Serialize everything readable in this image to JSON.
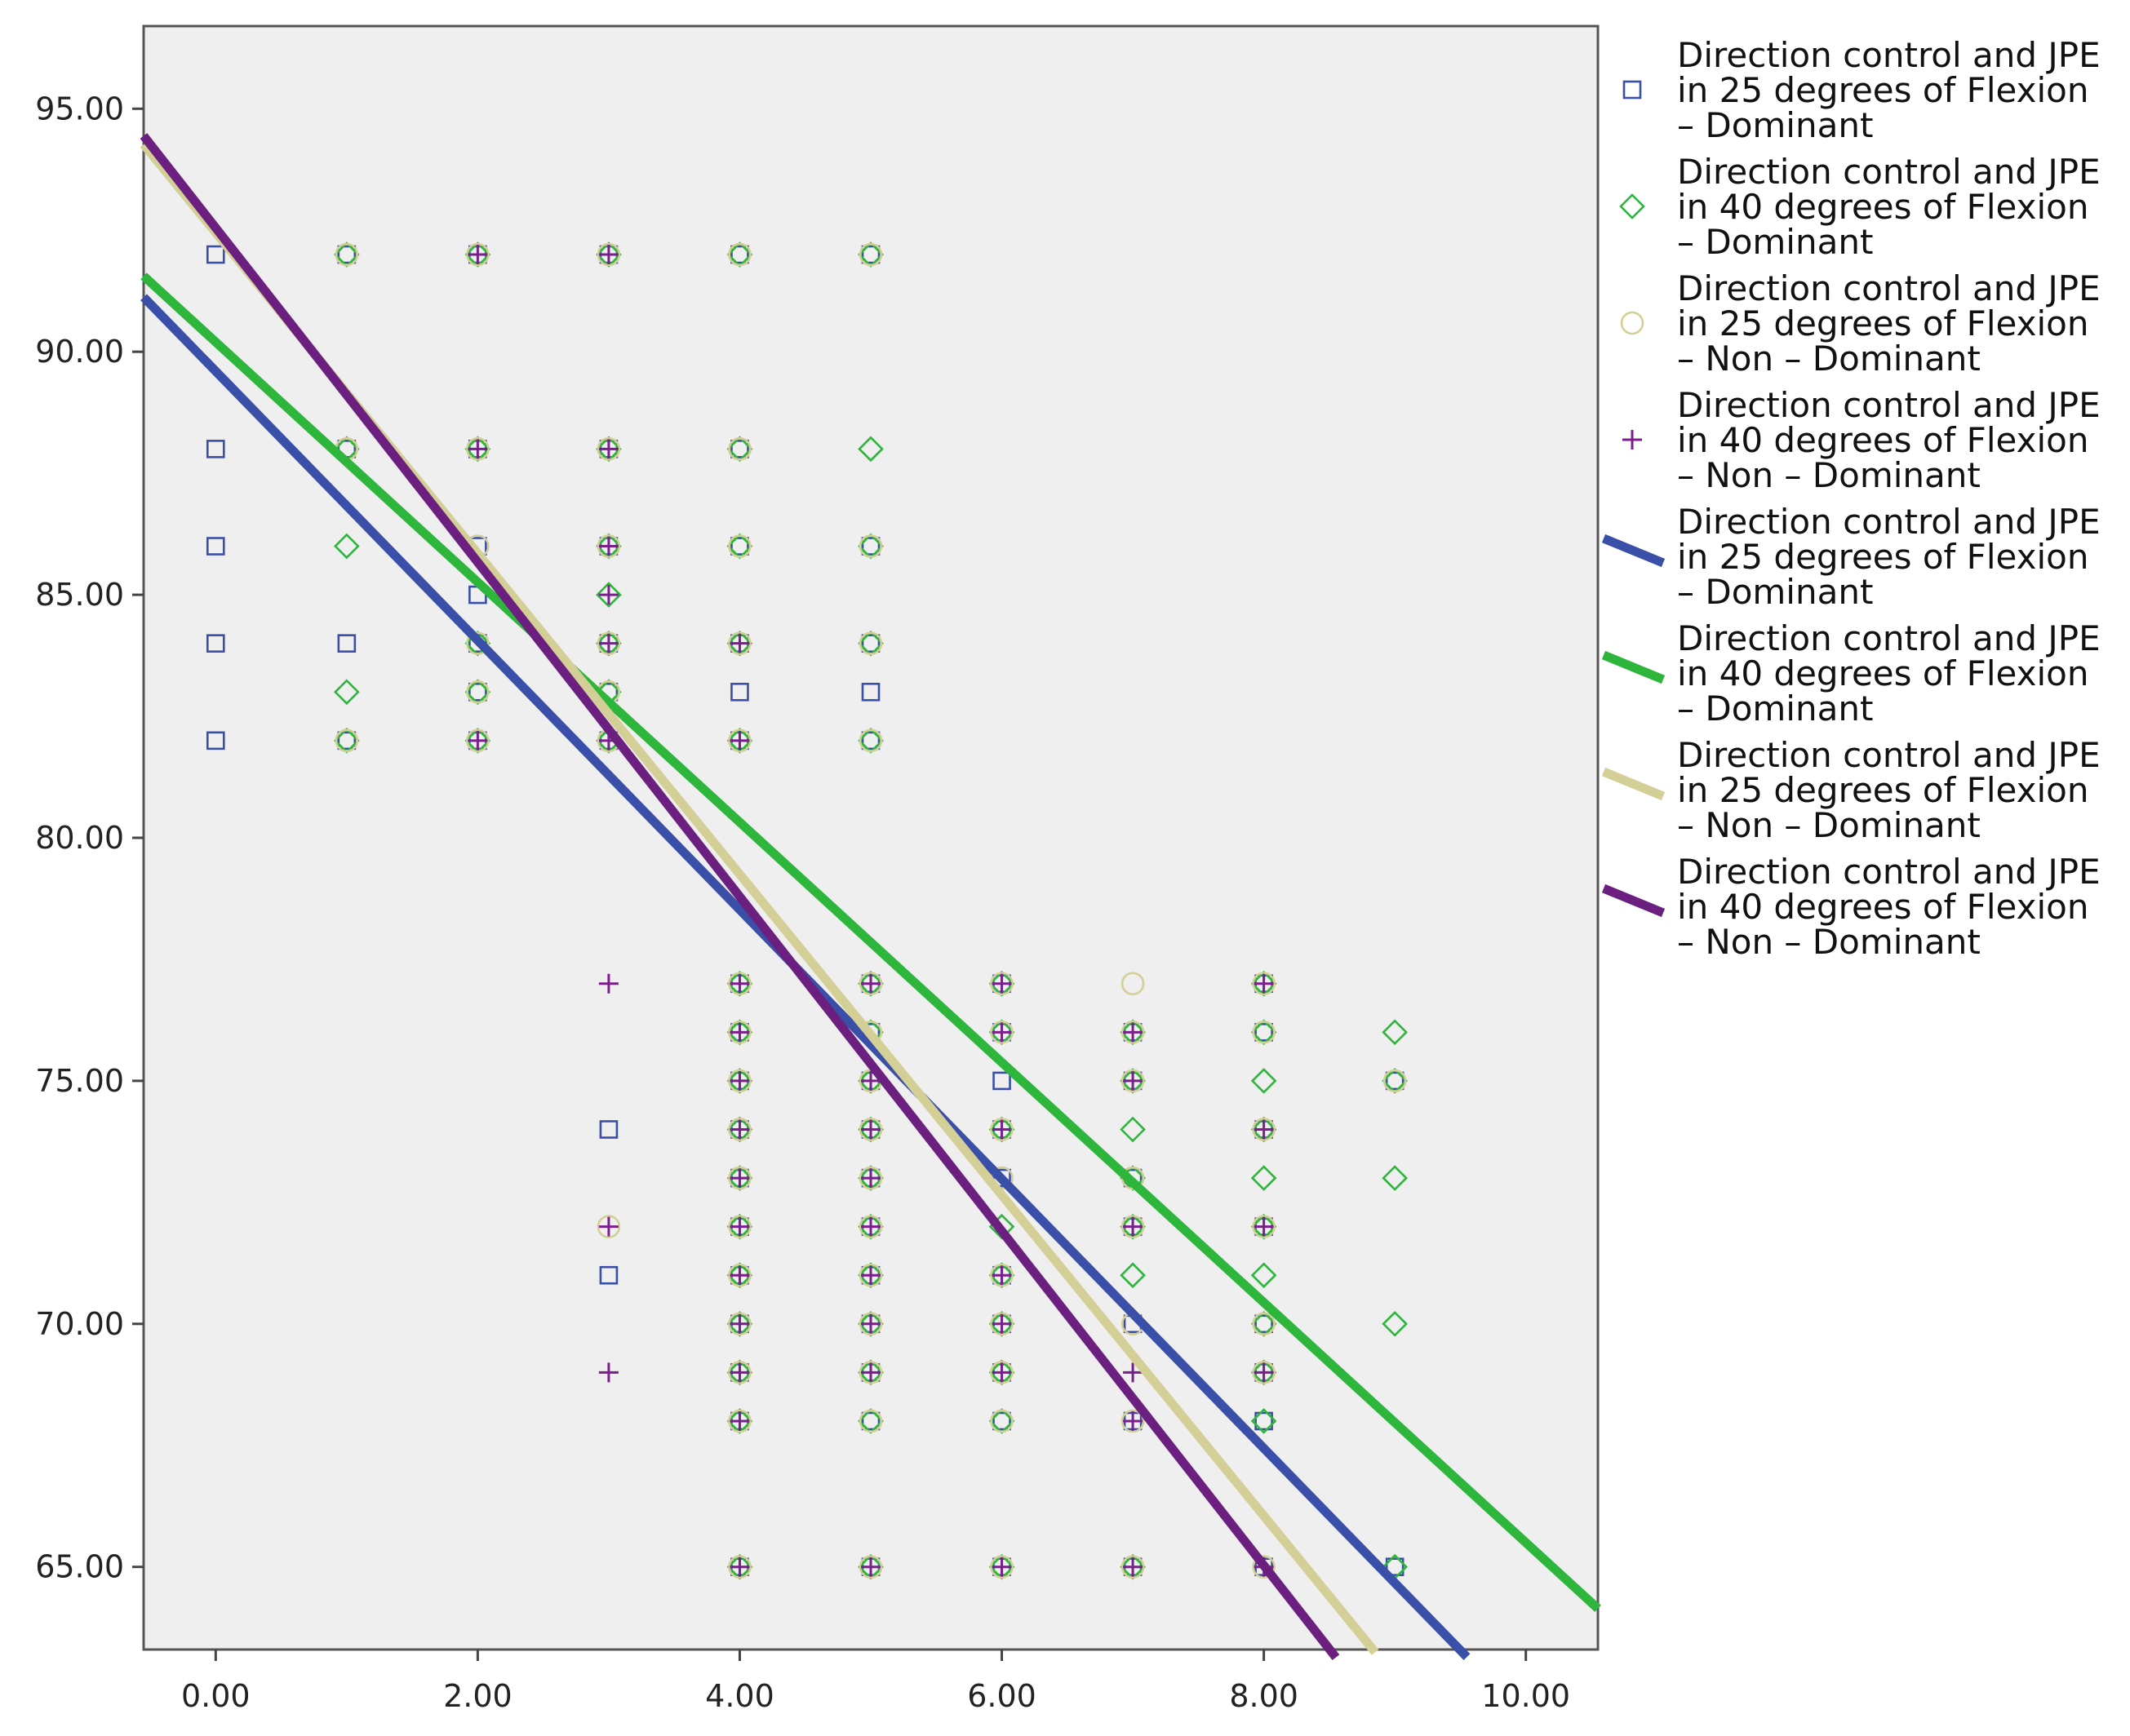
{
  "chart_data": {
    "type": "scatter",
    "title": "",
    "xlabel": "",
    "ylabel": "",
    "xlim": [
      -0.55,
      10.55
    ],
    "ylim": [
      63.3,
      96.7
    ],
    "x_ticks": [
      0,
      2,
      4,
      6,
      8,
      10
    ],
    "x_tick_labels": [
      "0.00",
      "2.00",
      "4.00",
      "6.00",
      "8.00",
      "10.00"
    ],
    "y_ticks": [
      65,
      70,
      75,
      80,
      85,
      90,
      95
    ],
    "y_tick_labels": [
      "65.00",
      "70.00",
      "75.00",
      "80.00",
      "85.00",
      "90.00",
      "95.00"
    ],
    "grid": false,
    "legend_position": "right",
    "series": [
      {
        "name": "Direction control and JPE in 25 degrees of Flexion – Dominant",
        "legend_lines": [
          "Direction control and JPE",
          "in 25 degrees of Flexion",
          "– Dominant"
        ],
        "marker": "square",
        "color": "#3a4fa8",
        "points": [
          [
            0,
            92
          ],
          [
            0,
            88
          ],
          [
            0,
            86
          ],
          [
            0,
            84
          ],
          [
            0,
            82
          ],
          [
            1,
            92
          ],
          [
            1,
            88
          ],
          [
            1,
            84
          ],
          [
            1,
            82
          ],
          [
            2,
            92
          ],
          [
            2,
            88
          ],
          [
            2,
            86
          ],
          [
            2,
            85
          ],
          [
            2,
            84
          ],
          [
            2,
            83
          ],
          [
            2,
            82
          ],
          [
            3,
            92
          ],
          [
            3,
            88
          ],
          [
            3,
            86
          ],
          [
            3,
            84
          ],
          [
            3,
            83
          ],
          [
            3,
            82
          ],
          [
            3,
            74
          ],
          [
            3,
            71
          ],
          [
            4,
            92
          ],
          [
            4,
            88
          ],
          [
            4,
            86
          ],
          [
            4,
            84
          ],
          [
            4,
            83
          ],
          [
            4,
            82
          ],
          [
            4,
            77
          ],
          [
            4,
            76
          ],
          [
            4,
            75
          ],
          [
            4,
            74
          ],
          [
            4,
            73
          ],
          [
            4,
            72
          ],
          [
            4,
            71
          ],
          [
            4,
            70
          ],
          [
            4,
            69
          ],
          [
            4,
            68
          ],
          [
            4,
            65
          ],
          [
            5,
            92
          ],
          [
            5,
            86
          ],
          [
            5,
            84
          ],
          [
            5,
            83
          ],
          [
            5,
            82
          ],
          [
            5,
            77
          ],
          [
            5,
            76
          ],
          [
            5,
            75
          ],
          [
            5,
            74
          ],
          [
            5,
            73
          ],
          [
            5,
            72
          ],
          [
            5,
            71
          ],
          [
            5,
            70
          ],
          [
            5,
            69
          ],
          [
            5,
            68
          ],
          [
            5,
            65
          ],
          [
            6,
            77
          ],
          [
            6,
            76
          ],
          [
            6,
            75
          ],
          [
            6,
            74
          ],
          [
            6,
            73
          ],
          [
            6,
            71
          ],
          [
            6,
            70
          ],
          [
            6,
            69
          ],
          [
            6,
            68
          ],
          [
            6,
            65
          ],
          [
            7,
            76
          ],
          [
            7,
            75
          ],
          [
            7,
            73
          ],
          [
            7,
            72
          ],
          [
            7,
            70
          ],
          [
            7,
            68
          ],
          [
            7,
            65
          ],
          [
            8,
            77
          ],
          [
            8,
            76
          ],
          [
            8,
            74
          ],
          [
            8,
            72
          ],
          [
            8,
            70
          ],
          [
            8,
            69
          ],
          [
            8,
            68
          ],
          [
            8,
            65
          ],
          [
            9,
            75
          ],
          [
            9,
            65
          ]
        ]
      },
      {
        "name": "Direction control and JPE in 40 degrees of Flexion – Dominant",
        "legend_lines": [
          "Direction control and JPE",
          "in 40 degrees of Flexion",
          "– Dominant"
        ],
        "marker": "diamond",
        "color": "#2db53c",
        "points": [
          [
            1,
            92
          ],
          [
            1,
            88
          ],
          [
            1,
            86
          ],
          [
            1,
            83
          ],
          [
            1,
            82
          ],
          [
            2,
            92
          ],
          [
            2,
            88
          ],
          [
            2,
            84
          ],
          [
            2,
            83
          ],
          [
            2,
            82
          ],
          [
            3,
            92
          ],
          [
            3,
            88
          ],
          [
            3,
            86
          ],
          [
            3,
            85
          ],
          [
            3,
            84
          ],
          [
            3,
            83
          ],
          [
            3,
            82
          ],
          [
            4,
            92
          ],
          [
            4,
            88
          ],
          [
            4,
            86
          ],
          [
            4,
            84
          ],
          [
            4,
            82
          ],
          [
            4,
            77
          ],
          [
            4,
            76
          ],
          [
            4,
            75
          ],
          [
            4,
            74
          ],
          [
            4,
            73
          ],
          [
            4,
            72
          ],
          [
            4,
            71
          ],
          [
            4,
            70
          ],
          [
            4,
            69
          ],
          [
            4,
            68
          ],
          [
            4,
            65
          ],
          [
            5,
            92
          ],
          [
            5,
            88
          ],
          [
            5,
            86
          ],
          [
            5,
            84
          ],
          [
            5,
            82
          ],
          [
            5,
            77
          ],
          [
            5,
            76
          ],
          [
            5,
            75
          ],
          [
            5,
            74
          ],
          [
            5,
            73
          ],
          [
            5,
            72
          ],
          [
            5,
            71
          ],
          [
            5,
            70
          ],
          [
            5,
            69
          ],
          [
            5,
            68
          ],
          [
            5,
            65
          ],
          [
            6,
            77
          ],
          [
            6,
            76
          ],
          [
            6,
            74
          ],
          [
            6,
            72
          ],
          [
            6,
            71
          ],
          [
            6,
            70
          ],
          [
            6,
            69
          ],
          [
            6,
            68
          ],
          [
            6,
            65
          ],
          [
            7,
            76
          ],
          [
            7,
            75
          ],
          [
            7,
            74
          ],
          [
            7,
            73
          ],
          [
            7,
            72
          ],
          [
            7,
            71
          ],
          [
            7,
            65
          ],
          [
            8,
            77
          ],
          [
            8,
            76
          ],
          [
            8,
            75
          ],
          [
            8,
            74
          ],
          [
            8,
            73
          ],
          [
            8,
            72
          ],
          [
            8,
            71
          ],
          [
            8,
            70
          ],
          [
            8,
            69
          ],
          [
            8,
            68
          ],
          [
            9,
            76
          ],
          [
            9,
            75
          ],
          [
            9,
            73
          ],
          [
            9,
            70
          ],
          [
            9,
            65
          ]
        ]
      },
      {
        "name": "Direction control and JPE in 25 degrees of Flexion – Non – Dominant",
        "legend_lines": [
          "Direction control and JPE",
          "in 25 degrees of Flexion",
          "– Non – Dominant"
        ],
        "marker": "circle",
        "color": "#d4cf96",
        "points": [
          [
            1,
            92
          ],
          [
            1,
            88
          ],
          [
            1,
            82
          ],
          [
            2,
            92
          ],
          [
            2,
            88
          ],
          [
            2,
            86
          ],
          [
            2,
            84
          ],
          [
            2,
            83
          ],
          [
            2,
            82
          ],
          [
            3,
            92
          ],
          [
            3,
            88
          ],
          [
            3,
            86
          ],
          [
            3,
            84
          ],
          [
            3,
            83
          ],
          [
            3,
            82
          ],
          [
            3,
            72
          ],
          [
            4,
            92
          ],
          [
            4,
            88
          ],
          [
            4,
            86
          ],
          [
            4,
            84
          ],
          [
            4,
            82
          ],
          [
            4,
            77
          ],
          [
            4,
            76
          ],
          [
            4,
            75
          ],
          [
            4,
            74
          ],
          [
            4,
            73
          ],
          [
            4,
            72
          ],
          [
            4,
            71
          ],
          [
            4,
            70
          ],
          [
            4,
            69
          ],
          [
            4,
            68
          ],
          [
            4,
            65
          ],
          [
            5,
            92
          ],
          [
            5,
            86
          ],
          [
            5,
            84
          ],
          [
            5,
            82
          ],
          [
            5,
            77
          ],
          [
            5,
            76
          ],
          [
            5,
            75
          ],
          [
            5,
            74
          ],
          [
            5,
            73
          ],
          [
            5,
            72
          ],
          [
            5,
            71
          ],
          [
            5,
            70
          ],
          [
            5,
            69
          ],
          [
            5,
            68
          ],
          [
            5,
            65
          ],
          [
            6,
            77
          ],
          [
            6,
            76
          ],
          [
            6,
            74
          ],
          [
            6,
            73
          ],
          [
            6,
            71
          ],
          [
            6,
            70
          ],
          [
            6,
            69
          ],
          [
            6,
            68
          ],
          [
            6,
            65
          ],
          [
            7,
            77
          ],
          [
            7,
            76
          ],
          [
            7,
            75
          ],
          [
            7,
            73
          ],
          [
            7,
            72
          ],
          [
            7,
            70
          ],
          [
            7,
            68
          ],
          [
            7,
            65
          ],
          [
            8,
            77
          ],
          [
            8,
            76
          ],
          [
            8,
            74
          ],
          [
            8,
            72
          ],
          [
            8,
            70
          ],
          [
            8,
            69
          ],
          [
            8,
            65
          ],
          [
            9,
            75
          ]
        ]
      },
      {
        "name": "Direction control and JPE in 40 degrees of Flexion – Non – Dominant",
        "legend_lines": [
          "Direction control and JPE",
          "in 40 degrees of Flexion",
          "– Non – Dominant"
        ],
        "marker": "plus",
        "color": "#7a1f8c",
        "points": [
          [
            2,
            92
          ],
          [
            2,
            88
          ],
          [
            2,
            82
          ],
          [
            3,
            92
          ],
          [
            3,
            88
          ],
          [
            3,
            86
          ],
          [
            3,
            85
          ],
          [
            3,
            84
          ],
          [
            3,
            82
          ],
          [
            3,
            77
          ],
          [
            3,
            72
          ],
          [
            3,
            69
          ],
          [
            4,
            84
          ],
          [
            4,
            82
          ],
          [
            4,
            77
          ],
          [
            4,
            76
          ],
          [
            4,
            75
          ],
          [
            4,
            74
          ],
          [
            4,
            73
          ],
          [
            4,
            72
          ],
          [
            4,
            71
          ],
          [
            4,
            70
          ],
          [
            4,
            69
          ],
          [
            4,
            68
          ],
          [
            4,
            65
          ],
          [
            5,
            77
          ],
          [
            5,
            75
          ],
          [
            5,
            74
          ],
          [
            5,
            73
          ],
          [
            5,
            72
          ],
          [
            5,
            71
          ],
          [
            5,
            70
          ],
          [
            5,
            69
          ],
          [
            5,
            65
          ],
          [
            6,
            77
          ],
          [
            6,
            76
          ],
          [
            6,
            74
          ],
          [
            6,
            71
          ],
          [
            6,
            70
          ],
          [
            6,
            69
          ],
          [
            6,
            65
          ],
          [
            7,
            76
          ],
          [
            7,
            75
          ],
          [
            7,
            72
          ],
          [
            7,
            69
          ],
          [
            7,
            68
          ],
          [
            7,
            65
          ],
          [
            8,
            77
          ],
          [
            8,
            74
          ],
          [
            8,
            72
          ],
          [
            8,
            69
          ],
          [
            8,
            65
          ]
        ]
      }
    ],
    "fit_lines": [
      {
        "name": "Direction control and JPE in 25 degrees of Flexion – Dominant",
        "legend_lines": [
          "Direction control and JPE",
          "in 25 degrees of Flexion",
          "– Dominant"
        ],
        "color": "#3a4fa8",
        "intercept": 89.6,
        "slope": -2.77,
        "x_range": [
          -0.55,
          9.55
        ]
      },
      {
        "name": "Direction control and JPE in 40 degrees of Flexion – Dominant",
        "legend_lines": [
          "Direction control and JPE",
          "in 40 degrees of Flexion",
          "– Dominant"
        ],
        "color": "#2db53c",
        "intercept": 90.2,
        "slope": -2.47,
        "x_range": [
          -0.55,
          10.55
        ]
      },
      {
        "name": "Direction control and JPE in 25 degrees of Flexion – Non – Dominant",
        "legend_lines": [
          "Direction control and JPE",
          "in 25 degrees of Flexion",
          "– Non – Dominant"
        ],
        "color": "#d4cf96",
        "intercept": 92.45,
        "slope": -3.3,
        "x_range": [
          -0.55,
          8.85
        ]
      },
      {
        "name": "Direction control and JPE in 40 degrees of Flexion – Non – Dominant",
        "legend_lines": [
          "Direction control and JPE",
          "in 40 degrees of Flexion",
          "– Non – Dominant"
        ],
        "color": "#6b1f7e",
        "intercept": 92.55,
        "slope": -3.44,
        "x_range": [
          -0.55,
          8.55
        ]
      }
    ]
  }
}
